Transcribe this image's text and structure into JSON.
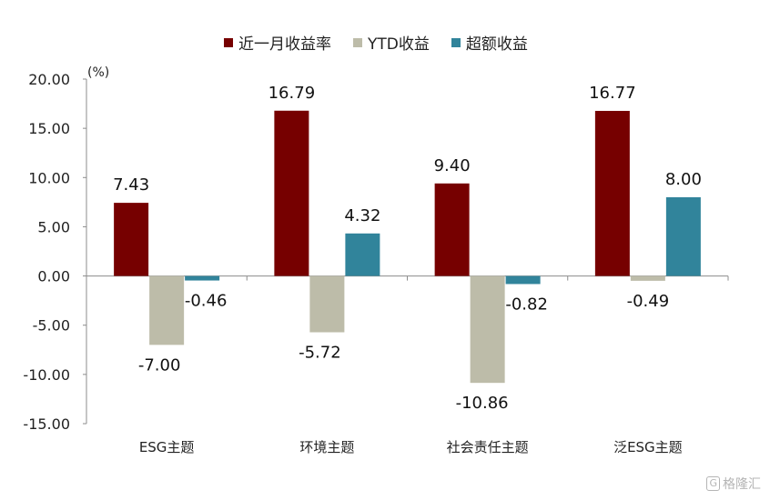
{
  "chart_data": {
    "type": "bar",
    "unit": "(%)",
    "categories": [
      "ESG主题",
      "环境主题",
      "社会责任主题",
      "泛ESG主题"
    ],
    "series": [
      {
        "name": "近一月收益率",
        "color": "#760000",
        "values": [
          7.43,
          16.79,
          9.4,
          16.77
        ],
        "labels": [
          "7.43",
          "16.79",
          "9.40",
          "16.77"
        ]
      },
      {
        "name": "YTD收益",
        "color": "#bdbca9",
        "values": [
          -7.0,
          -5.72,
          -10.86,
          -0.49
        ],
        "labels": [
          "-7.00",
          "-5.72",
          "-10.86",
          "-0.49"
        ]
      },
      {
        "name": "超额收益",
        "color": "#31849b",
        "values": [
          -0.46,
          4.32,
          -0.82,
          8.0
        ],
        "labels": [
          "-0.46",
          "4.32",
          "-0.82",
          "8.00"
        ]
      }
    ],
    "ylim": [
      -15,
      20
    ],
    "yticks": [
      "20.00",
      "15.00",
      "10.00",
      "5.00",
      "0.00",
      "-5.00",
      "-10.00",
      "-15.00"
    ],
    "ytick_values": [
      20,
      15,
      10,
      5,
      0,
      -5,
      -10,
      -15
    ],
    "grid": false,
    "legend": "top-center"
  },
  "watermark": {
    "icon": "G",
    "text": "格隆汇"
  }
}
